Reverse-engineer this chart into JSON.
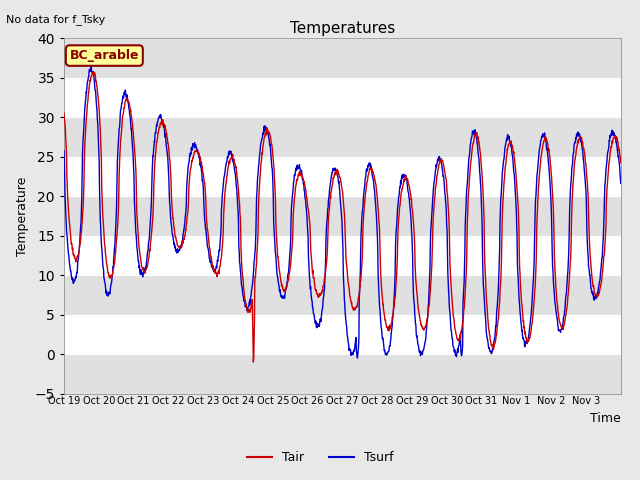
{
  "title": "Temperatures",
  "ylabel": "Temperature",
  "xlabel": "Time",
  "no_data_text": "No data for f_Tsky",
  "legend_box_label": "BC_arable",
  "ylim": [
    -5,
    40
  ],
  "xtick_labels": [
    "Oct 19",
    "Oct 20",
    "Oct 21",
    "Oct 22",
    "Oct 23",
    "Oct 24",
    "Oct 25",
    "Oct 26",
    "Oct 27",
    "Oct 28",
    "Oct 29",
    "Oct 30",
    "Oct 31",
    "Nov 1",
    "Nov 2",
    "Nov 3"
  ],
  "tair_color": "#cc0000",
  "tsurf_color": "#0000cc",
  "fig_bg_color": "#e8e8e8",
  "plot_bg_color": "#ffffff",
  "band_color": "#e0e0e0",
  "legend_box_bg": "#ffff99",
  "legend_box_edge": "#8b0000",
  "yticks": [
    -5,
    0,
    5,
    10,
    15,
    20,
    25,
    30,
    35,
    40
  ],
  "n_days": 16,
  "peak_temps": [
    34.0,
    36.0,
    31.5,
    29.0,
    25.0,
    25.0,
    29.0,
    21.5,
    23.5,
    23.5,
    22.0,
    25.0,
    28.5,
    26.5,
    27.5,
    27.5
  ],
  "min_temps": [
    13.0,
    10.0,
    9.0,
    13.5,
    13.5,
    4.0,
    8.5,
    7.5,
    7.0,
    3.0,
    3.5,
    2.5,
    0.5,
    1.5,
    2.0,
    6.0
  ],
  "surf_peak_temps": [
    35.0,
    36.5,
    32.0,
    29.5,
    25.5,
    25.5,
    29.5,
    22.0,
    24.0,
    24.0,
    22.5,
    25.5,
    29.0,
    27.0,
    28.0,
    28.0
  ],
  "surf_min_temps": [
    10.0,
    7.0,
    9.0,
    13.0,
    13.0,
    5.0,
    8.0,
    5.0,
    0.0,
    0.0,
    0.0,
    0.0,
    0.0,
    1.0,
    2.0,
    6.0
  ]
}
